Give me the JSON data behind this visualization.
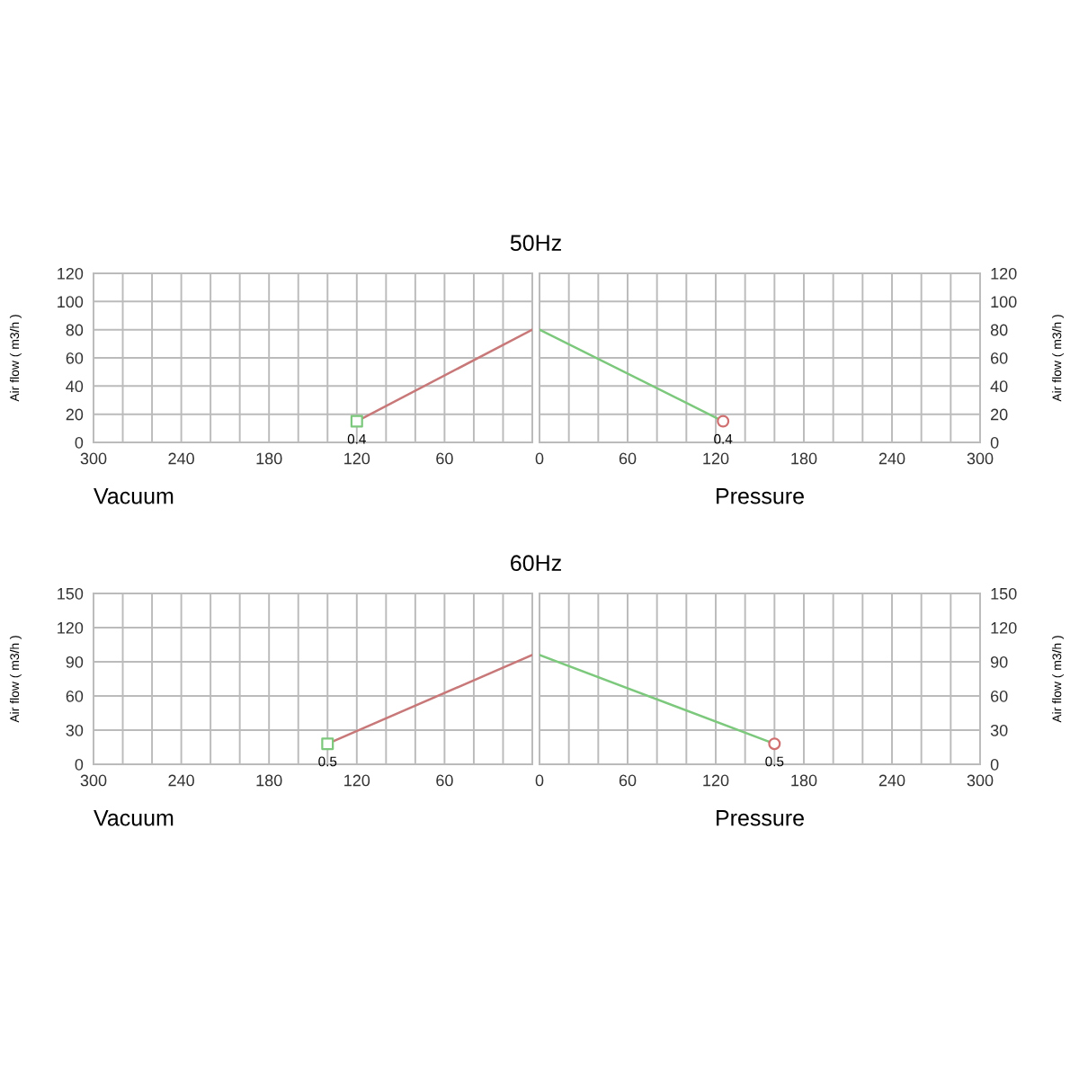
{
  "chart_data": [
    {
      "type": "line",
      "title": "50Hz",
      "xlabel": "Vacuum",
      "ylabel": "Air flow ( m3/h )",
      "xlim": [
        300,
        0
      ],
      "ylim": [
        0,
        120
      ],
      "xticks": [
        300,
        {
          "value": 280,
          "label": null
        },
        {
          "value": 260,
          "label": null
        },
        240,
        {
          "value": 220,
          "label": null
        },
        {
          "value": 200,
          "label": null
        },
        180,
        {
          "value": 160,
          "label": null
        },
        {
          "value": 140,
          "label": null
        },
        120,
        {
          "value": 100,
          "label": null
        },
        {
          "value": 80,
          "label": null
        },
        60,
        {
          "value": 40,
          "label": null
        },
        {
          "value": 20,
          "label": null
        },
        {
          "value": 0,
          "label": null
        }
      ],
      "yticks": [
        0,
        20,
        40,
        60,
        80,
        100,
        120
      ],
      "grid": true,
      "series": [
        {
          "color": "#c87878",
          "x": [
            0,
            120
          ],
          "values": [
            80,
            15
          ]
        },
        {
          "type": "scatter",
          "color": "#7cc87c",
          "marker": "square",
          "x": [
            120
          ],
          "values": [
            15
          ]
        }
      ],
      "annotations": [
        {
          "text": "0.4",
          "x": 120,
          "y": 15
        }
      ]
    },
    {
      "type": "line",
      "xlabel": "Pressure",
      "ylabel": "Air flow ( m3/h )",
      "xlim": [
        0,
        300
      ],
      "ylim": [
        0,
        120
      ],
      "xticks": [
        0,
        {
          "value": 20,
          "label": null
        },
        {
          "value": 40,
          "label": null
        },
        60,
        {
          "value": 80,
          "label": null
        },
        {
          "value": 100,
          "label": null
        },
        120,
        {
          "value": 140,
          "label": null
        },
        {
          "value": 160,
          "label": null
        },
        180,
        {
          "value": 200,
          "label": null
        },
        {
          "value": 220,
          "label": null
        },
        240,
        {
          "value": 260,
          "label": null
        },
        {
          "value": 280,
          "label": null
        },
        300
      ],
      "yticks": [
        0,
        20,
        40,
        60,
        80,
        100,
        120
      ],
      "grid": true,
      "series": [
        {
          "color": "#7cc87c",
          "x": [
            0,
            125
          ],
          "values": [
            80,
            15
          ]
        },
        {
          "type": "scatter",
          "color": "#d07070",
          "marker": "circle",
          "x": [
            125
          ],
          "values": [
            15
          ]
        }
      ],
      "annotations": [
        {
          "text": "0.4",
          "x": 125,
          "y": 15
        }
      ]
    },
    {
      "type": "line",
      "title": "60Hz",
      "xlabel": "Vacuum",
      "ylabel": "Air flow ( m3/h )",
      "xlim": [
        300,
        0
      ],
      "ylim": [
        0,
        150
      ],
      "xticks": [
        300,
        {
          "value": 280,
          "label": null
        },
        {
          "value": 260,
          "label": null
        },
        240,
        {
          "value": 220,
          "label": null
        },
        {
          "value": 200,
          "label": null
        },
        180,
        {
          "value": 160,
          "label": null
        },
        {
          "value": 140,
          "label": null
        },
        120,
        {
          "value": 100,
          "label": null
        },
        {
          "value": 80,
          "label": null
        },
        60,
        {
          "value": 40,
          "label": null
        },
        {
          "value": 20,
          "label": null
        },
        {
          "value": 0,
          "label": null
        }
      ],
      "yticks": [
        0,
        30,
        60,
        90,
        120,
        150
      ],
      "grid": true,
      "series": [
        {
          "color": "#c87878",
          "x": [
            0,
            140
          ],
          "values": [
            96,
            18
          ]
        },
        {
          "type": "scatter",
          "color": "#7cc87c",
          "marker": "square",
          "x": [
            140
          ],
          "values": [
            18
          ]
        }
      ],
      "annotations": [
        {
          "text": "0.5",
          "x": 140,
          "y": 18
        }
      ]
    },
    {
      "type": "line",
      "xlabel": "Pressure",
      "ylabel": "Air flow ( m3/h )",
      "xlim": [
        0,
        300
      ],
      "ylim": [
        0,
        150
      ],
      "xticks": [
        0,
        {
          "value": 20,
          "label": null
        },
        {
          "value": 40,
          "label": null
        },
        60,
        {
          "value": 80,
          "label": null
        },
        {
          "value": 100,
          "label": null
        },
        120,
        {
          "value": 140,
          "label": null
        },
        {
          "value": 160,
          "label": null
        },
        180,
        {
          "value": 200,
          "label": null
        },
        {
          "value": 220,
          "label": null
        },
        240,
        {
          "value": 260,
          "label": null
        },
        {
          "value": 280,
          "label": null
        },
        300
      ],
      "yticks": [
        0,
        30,
        60,
        90,
        120,
        150
      ],
      "grid": true,
      "series": [
        {
          "color": "#7cc87c",
          "x": [
            0,
            160
          ],
          "values": [
            96,
            18
          ]
        },
        {
          "type": "scatter",
          "color": "#d07070",
          "marker": "circle",
          "x": [
            160
          ],
          "values": [
            18
          ]
        }
      ],
      "annotations": [
        {
          "text": "0.5",
          "x": 160,
          "y": 18
        }
      ]
    }
  ]
}
